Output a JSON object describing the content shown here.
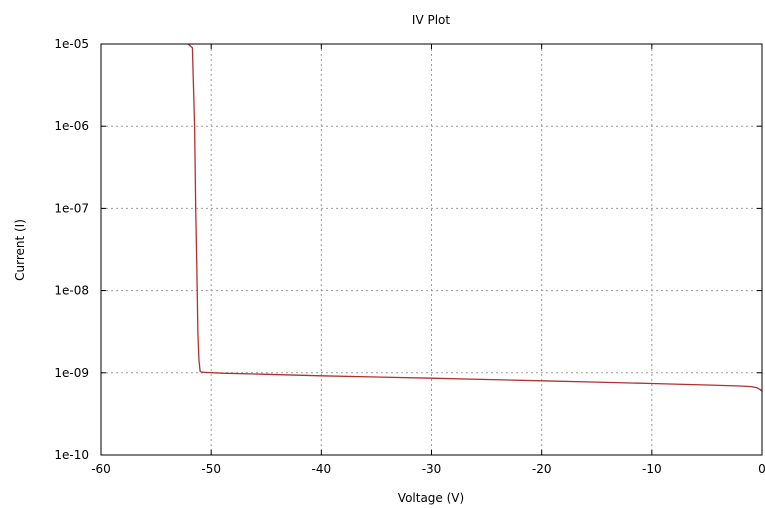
{
  "chart_data": {
    "type": "line",
    "title": "IV Plot",
    "xlabel": "Voltage (V)",
    "ylabel": "Current (I)",
    "xlim": [
      -60,
      0
    ],
    "ylim": [
      1e-10,
      1e-05
    ],
    "yscale": "log",
    "grid": true,
    "x_ticks": [
      -60,
      -50,
      -40,
      -30,
      -20,
      -10,
      0
    ],
    "x_tick_labels": [
      "-60",
      "-50",
      "-40",
      "-30",
      "-20",
      "-10",
      "0"
    ],
    "y_ticks": [
      1e-05,
      1e-06,
      1e-07,
      1e-08,
      1e-09,
      1e-10
    ],
    "y_tick_labels": [
      "1e-05",
      "1e-06",
      "1e-07",
      "1e-08",
      "1e-09",
      "1e-10"
    ],
    "series": [
      {
        "color": "#b03030",
        "x": [
          -52.1,
          -51.7,
          -51.6,
          -51.5,
          -51.4,
          -51.3,
          -51.2,
          -51.1,
          -51.0,
          -50.9,
          -50.5,
          -49.0,
          -45.0,
          -40.0,
          -35.0,
          -30.0,
          -25.0,
          -20.0,
          -15.0,
          -10.0,
          -5.0,
          -2.0,
          -1.0,
          -0.5,
          -0.2,
          0.0
        ],
        "y": [
          1e-05,
          9e-06,
          3e-06,
          1e-06,
          1e-07,
          2e-08,
          3e-09,
          1.4e-09,
          1.05e-09,
          1.02e-09,
          1.01e-09,
          9.9e-10,
          9.6e-10,
          9.2e-10,
          8.9e-10,
          8.6e-10,
          8.3e-10,
          8e-10,
          7.7e-10,
          7.4e-10,
          7.1e-10,
          6.9e-10,
          6.8e-10,
          6.6e-10,
          6.3e-10,
          6e-10
        ]
      }
    ]
  }
}
